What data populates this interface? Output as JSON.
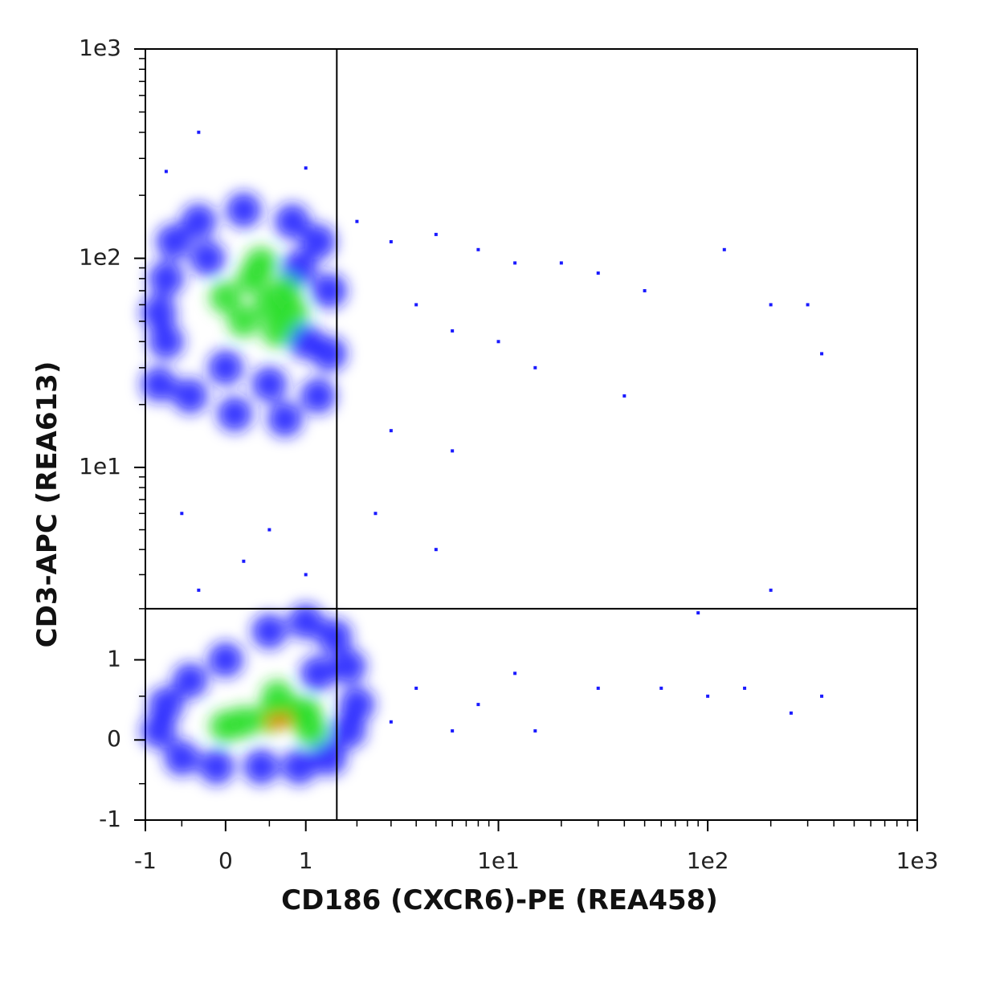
{
  "chart_data": {
    "type": "scatter",
    "scale": "biexponential",
    "xlabel": "CD186 (CXCR6)-PE (REA458)",
    "ylabel": "CD3-APC (REA613)",
    "xlim": [
      -1,
      1000
    ],
    "ylim": [
      -1,
      1000
    ],
    "xticks": [
      -1,
      0,
      1,
      {
        "value": 10,
        "label": "1e1"
      },
      {
        "value": 100,
        "label": "1e2"
      },
      {
        "value": 1000,
        "label": "1e3"
      }
    ],
    "yticks": [
      -1,
      0,
      1,
      {
        "value": 10,
        "label": "1e1"
      },
      {
        "value": 100,
        "label": "1e2"
      },
      {
        "value": 1000,
        "label": "1e3"
      }
    ],
    "minor_ticks": [
      -0.5,
      0.5,
      2,
      3,
      4,
      5,
      6,
      7,
      8,
      9,
      20,
      30,
      40,
      50,
      60,
      70,
      80,
      90,
      200,
      300,
      400,
      500,
      600,
      700,
      800,
      900
    ],
    "gates": {
      "x": 1.55,
      "y": 2
    },
    "series": [
      {
        "color": "#1a1aff",
        "x": [
          -0.7,
          -0.7,
          -0.6,
          -0.3,
          0.2,
          0.8,
          1.2,
          1.4,
          1.4,
          1.2,
          0.7,
          0.1,
          -0.4,
          -0.8,
          -0.8,
          -0.2,
          0.9,
          1.0,
          0.0,
          0.5,
          -0.8,
          -0.7,
          -0.5,
          -0.1,
          0.4,
          0.9,
          1.4,
          1.8,
          2.0,
          1.8,
          1.5,
          1.0,
          0.5,
          0.0,
          -0.4,
          1.2
        ],
        "y": [
          40,
          80,
          120,
          150,
          170,
          150,
          120,
          70,
          35,
          22,
          17,
          18,
          22,
          25,
          55,
          100,
          90,
          40,
          30,
          25,
          0.1,
          0.4,
          -0.2,
          -0.3,
          -0.3,
          -0.3,
          -0.2,
          0.1,
          0.4,
          0.9,
          1.4,
          1.7,
          1.5,
          1.0,
          0.7,
          0.8
        ]
      },
      {
        "color": "#22dd22",
        "x": [
          0.2,
          0.5,
          0.7,
          0.3,
          0.6,
          0.0,
          0.8,
          0.4,
          0.2,
          0.5,
          0.8,
          1.0,
          0.0,
          0.6,
          1.1
        ],
        "y": [
          50,
          60,
          70,
          80,
          45,
          65,
          55,
          95,
          0.2,
          0.25,
          0.3,
          0.3,
          0.15,
          0.5,
          0.1
        ]
      },
      {
        "color": "#ff6a00",
        "x": [
          0.55,
          0.7
        ],
        "y": [
          0.2,
          0.22
        ]
      },
      {
        "color": "#1a1aff",
        "x": [
          2,
          3,
          5,
          8,
          12,
          20,
          30,
          50,
          120,
          200,
          300,
          350,
          4,
          6,
          10,
          15,
          40,
          3,
          6,
          2.5,
          5,
          0.5,
          -0.5,
          0.2,
          1,
          -0.3,
          4,
          8,
          12,
          30,
          60,
          100,
          150,
          250,
          350,
          200,
          90,
          3,
          6,
          15,
          -0.3,
          1,
          -0.7
        ],
        "y": [
          150,
          120,
          130,
          110,
          95,
          95,
          85,
          70,
          110,
          60,
          60,
          35,
          60,
          45,
          40,
          30,
          22,
          15,
          12,
          6,
          4,
          5,
          6,
          3.5,
          3,
          2.5,
          0.6,
          0.4,
          0.8,
          0.6,
          0.6,
          0.5,
          0.6,
          0.3,
          0.5,
          2.5,
          1.9,
          0.2,
          0.1,
          0.1,
          400,
          270,
          260
        ]
      }
    ]
  }
}
